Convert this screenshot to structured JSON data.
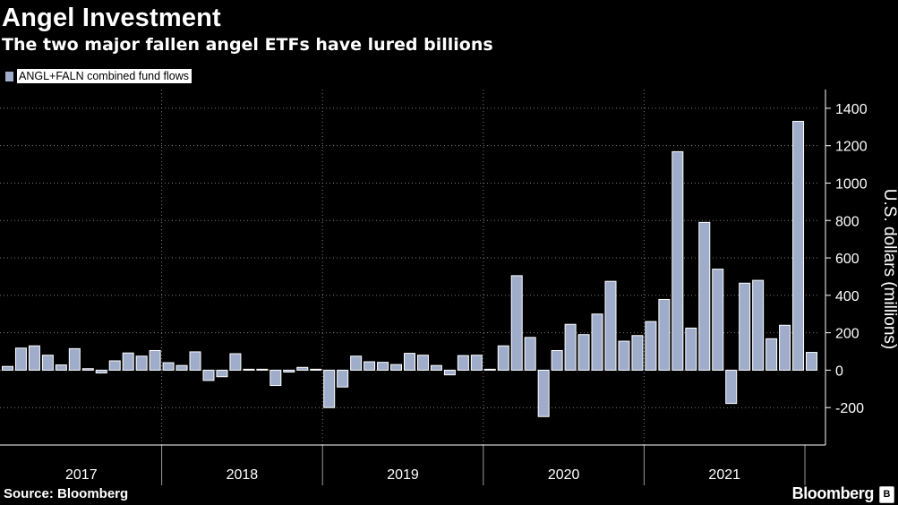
{
  "header": {
    "title": "Angel Investment",
    "subtitle": "The two major fallen angel ETFs have lured billions"
  },
  "legend": {
    "label": "ANGL+FALN combined fund flows"
  },
  "footer": {
    "source": "Source: Bloomberg",
    "brand": "Bloomberg"
  },
  "colors": {
    "bar": "#9fadcb",
    "bar_stroke": "#ffffff",
    "background": "#000000",
    "grid": "#7a7a7a"
  },
  "chart_data": {
    "type": "bar",
    "title": "Angel Investment",
    "subtitle": "The two major fallen angel ETFs have lured billions",
    "ylabel": "U.S. dollars (millions)",
    "xlabel": "",
    "ylim": [
      -400,
      1500
    ],
    "yticks": [
      -200,
      0,
      200,
      400,
      600,
      800,
      1000,
      1200,
      1400
    ],
    "grid": true,
    "legend_position": "top-left",
    "frequency": "monthly",
    "start": "2017-01",
    "year_labels": [
      "2017",
      "2018",
      "2019",
      "2020",
      "2021"
    ],
    "series": [
      {
        "name": "ANGL+FALN combined fund flows",
        "values": [
          20,
          118,
          130,
          80,
          28,
          115,
          8,
          -15,
          50,
          92,
          75,
          105,
          40,
          25,
          98,
          -55,
          -35,
          88,
          5,
          5,
          -82,
          -10,
          15,
          5,
          -200,
          -90,
          75,
          45,
          42,
          30,
          90,
          80,
          25,
          -25,
          78,
          80,
          5,
          130,
          505,
          175,
          -248,
          105,
          245,
          190,
          300,
          475,
          155,
          185,
          260,
          378,
          1168,
          225,
          790,
          540,
          -178,
          465,
          480,
          168,
          240,
          1330,
          95
        ]
      }
    ]
  }
}
